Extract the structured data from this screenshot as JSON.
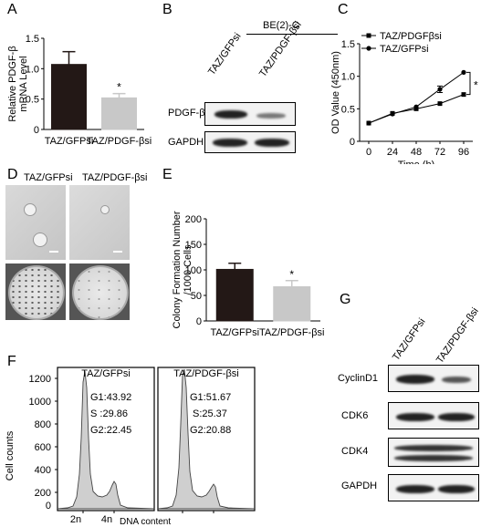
{
  "panels": {
    "A": {
      "letter": "A",
      "ylabel_line1": "Relative PDGF-β",
      "ylabel_line2": "mRNA Level",
      "significance": "*"
    },
    "B": {
      "letter": "B",
      "cell_line": "BE(2)-C",
      "lanes": [
        "TAZ/GFPsi",
        "TAZ/PDGF-βsi"
      ],
      "rows": [
        "PDGF-β",
        "GAPDH"
      ]
    },
    "C": {
      "letter": "C",
      "significance": "*"
    },
    "D": {
      "letter": "D",
      "labels": [
        "TAZ/GFPsi",
        "TAZ/PDGF-βsi"
      ]
    },
    "E": {
      "letter": "E",
      "ylabel_line1": "Colony Formation Number",
      "ylabel_line2": "/1000 Cells",
      "significance": "*"
    },
    "F": {
      "letter": "F",
      "ylabel": "Cell counts",
      "xlabel": "DNA content",
      "yticks": [
        "1200",
        "1000",
        "800",
        "600",
        "400",
        "200",
        "0"
      ],
      "xticks": [
        "2n",
        "4n"
      ],
      "left": {
        "title": "TAZ/GFPsi",
        "g1": "G1:43.92",
        "s": "S :29.86",
        "g2": "G2:22.45"
      },
      "right": {
        "title": "TAZ/PDGF-βsi",
        "g1": "G1:51.67",
        "s": "S:25.37",
        "g2": "G2:20.88"
      }
    },
    "G": {
      "letter": "G",
      "lanes": [
        "TAZ/GFPsi",
        "TAZ/PDGF-βsi"
      ],
      "rows": [
        "CyclinD1",
        "CDK6",
        "CDK4",
        "GAPDH"
      ]
    }
  },
  "chart_data": [
    {
      "id": "A",
      "type": "bar",
      "categories": [
        "TAZ/GFPsi",
        "TAZ/PDGF-βsi"
      ],
      "values": [
        1.07,
        0.52
      ],
      "errors": [
        0.21,
        0.07
      ],
      "colors": [
        "#231816",
        "#c8c8c8"
      ],
      "ylim": [
        0,
        1.5
      ],
      "yticks": [
        "0",
        "0.5",
        "1.0",
        "1.5"
      ]
    },
    {
      "id": "C",
      "type": "line",
      "xlabel": "Time (h)",
      "ylabel": "OD Value (450nm)",
      "x": [
        0,
        24,
        48,
        72,
        96
      ],
      "xticks": [
        "0",
        "24",
        "48",
        "72",
        "96"
      ],
      "ylim": [
        0,
        1.5
      ],
      "yticks": [
        "0",
        "0.5",
        "1.0",
        "1.5"
      ],
      "series": [
        {
          "name": "TAZ/PDGFβsi",
          "marker": "square",
          "values": [
            0.28,
            0.43,
            0.5,
            0.58,
            0.72
          ]
        },
        {
          "name": "TAZ/GFPsi",
          "marker": "circle",
          "values": [
            0.28,
            0.42,
            0.53,
            0.8,
            1.06
          ],
          "errors": [
            0,
            0,
            0,
            0.05,
            0
          ]
        }
      ]
    },
    {
      "id": "E",
      "type": "bar",
      "categories": [
        "TAZ/GFPsi",
        "TAZ/PDGF-βsi"
      ],
      "values": [
        101,
        67
      ],
      "errors": [
        12,
        12
      ],
      "colors": [
        "#231816",
        "#c8c8c8"
      ],
      "ylim": [
        0,
        200
      ],
      "yticks": [
        "0",
        "50",
        "100",
        "150",
        "200"
      ]
    }
  ]
}
